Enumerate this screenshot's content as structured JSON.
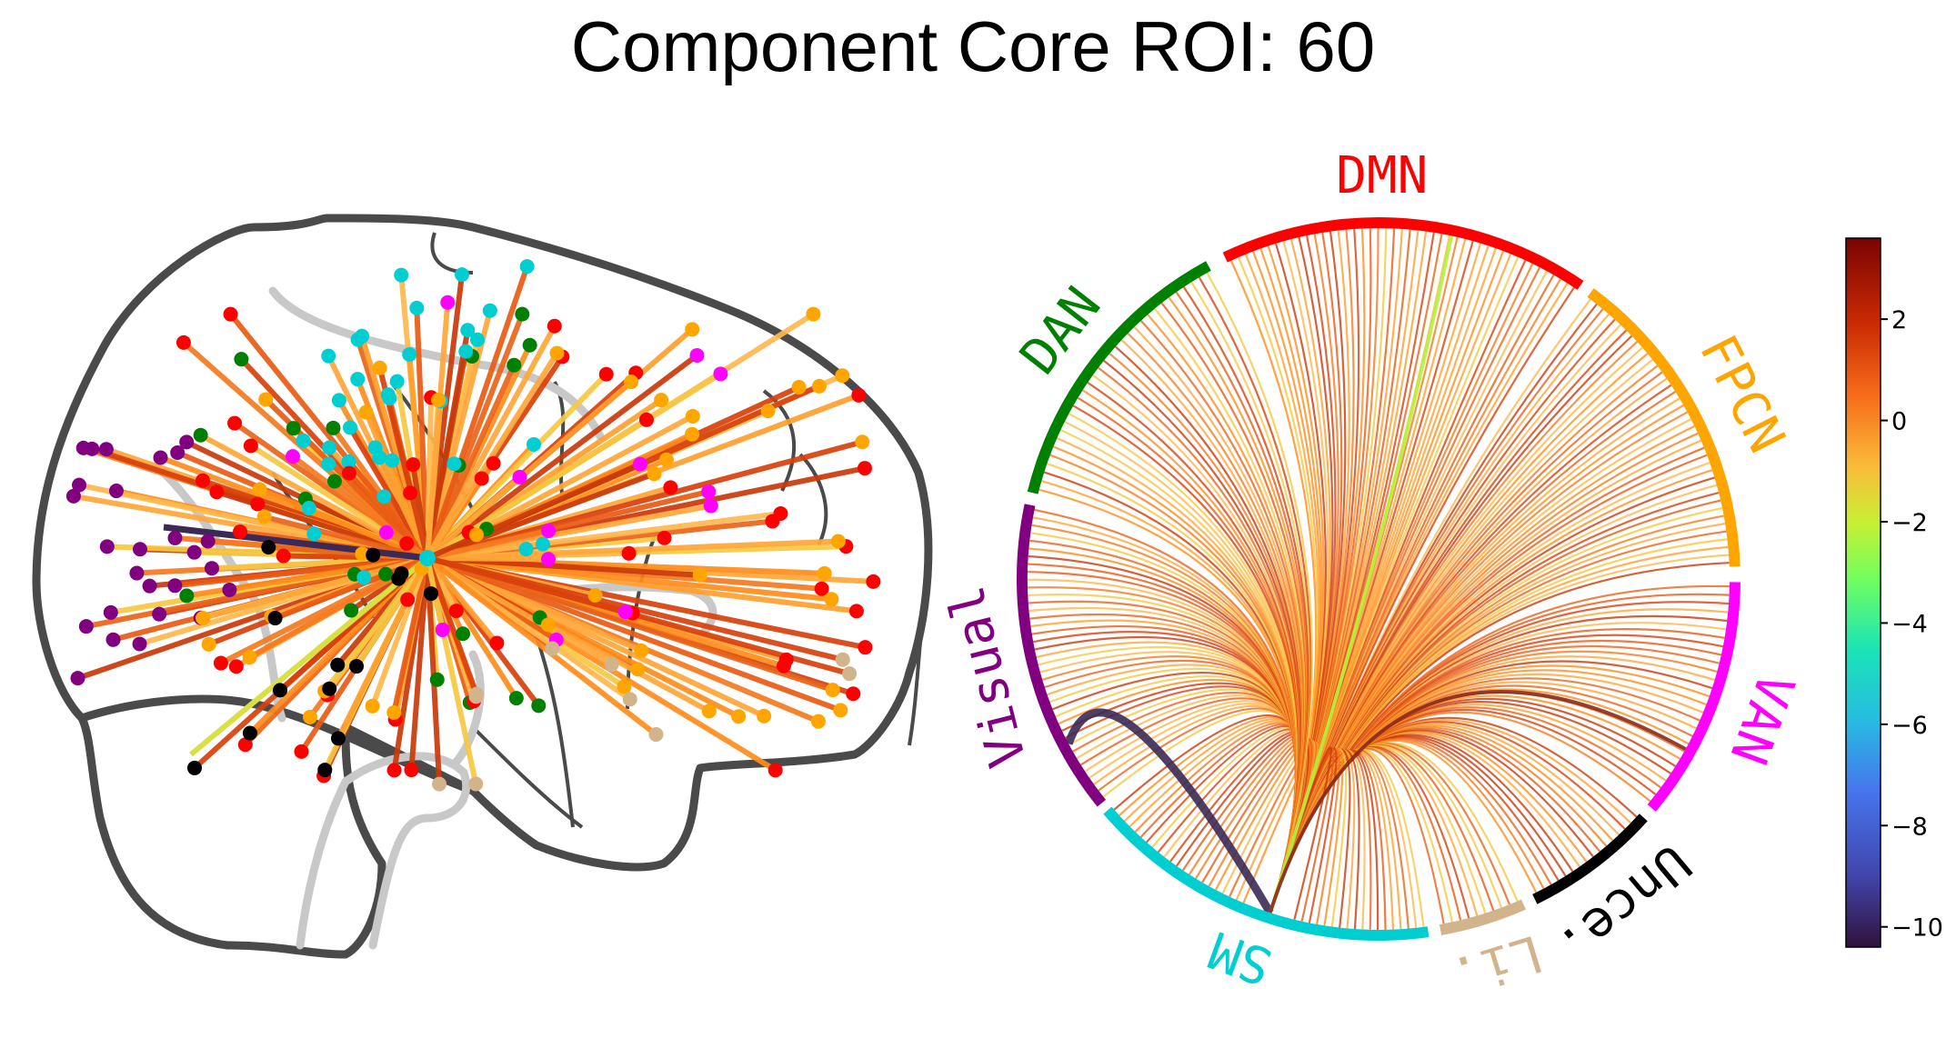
{
  "title": "Component Core ROI: 60",
  "networks": [
    {
      "key": "dmn",
      "label": "DMN",
      "color": "#ff0000",
      "start": 244.5,
      "end": 304.5,
      "nodes": 46
    },
    {
      "key": "fpcn",
      "label": "FPCN",
      "color": "#ffa500",
      "start": 306.5,
      "end": 358.0,
      "nodes": 40
    },
    {
      "key": "van",
      "label": "VAN",
      "color": "#ff00ff",
      "start": 360.5,
      "end": 400.0,
      "nodes": 28
    },
    {
      "key": "unce",
      "label": "Unce.",
      "color": "#000000",
      "start": 402.0,
      "end": 424.0,
      "nodes": 16
    },
    {
      "key": "li",
      "label": "Li.",
      "color": "#d2b48c",
      "start": 426.0,
      "end": 440.0,
      "nodes": 10
    },
    {
      "key": "sm",
      "label": "SM",
      "color": "#00ced1",
      "start": 442.0,
      "end": 499.5,
      "nodes": 46
    },
    {
      "key": "visual",
      "label": "Visual",
      "color": "#800080",
      "start": 501.0,
      "end": 552.0,
      "nodes": 40
    },
    {
      "key": "dan",
      "label": "DAN",
      "color": "#008000",
      "start": 554.0,
      "end": 601.5,
      "nodes": 32
    }
  ],
  "colorbar": {
    "ticks": [
      "2",
      "0",
      "−2",
      "−4",
      "−6",
      "−8",
      "−10"
    ],
    "min": -10.4,
    "max": 3.6,
    "colormap": "turbo-like (dark red high, indigo low)"
  },
  "core_roi": {
    "network": "SM",
    "value": 60
  },
  "strong_edges": [
    {
      "from": "SM",
      "to": "Visual",
      "value": -9.8
    },
    {
      "from": "SM",
      "to": "DMN",
      "value": -3.5
    },
    {
      "from": "SM",
      "to": "VAN",
      "value": 2.6
    }
  ]
}
